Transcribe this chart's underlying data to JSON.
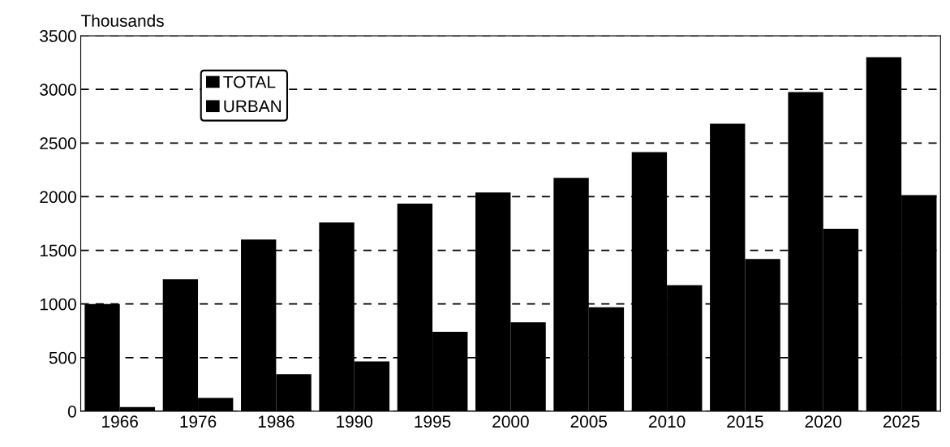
{
  "chart_data": {
    "type": "bar",
    "ylabel": "Thousands",
    "categories": [
      "1966",
      "1976",
      "1986",
      "1990",
      "1995",
      "2000",
      "2005",
      "2010",
      "2015",
      "2020",
      "2025"
    ],
    "series": [
      {
        "name": "TOTAL",
        "color": "#000000",
        "values": [
          1000,
          1230,
          1600,
          1760,
          1935,
          2040,
          2175,
          2415,
          2680,
          2975,
          3300
        ]
      },
      {
        "name": "URBAN",
        "color": "#000000",
        "values": [
          40,
          125,
          345,
          465,
          740,
          830,
          970,
          1175,
          1420,
          1700,
          2015
        ]
      }
    ],
    "ylim": [
      0,
      3500
    ],
    "yticks": [
      0,
      500,
      1000,
      1500,
      2000,
      2500,
      3000,
      3500
    ],
    "grid": "y",
    "legend": "top left"
  }
}
